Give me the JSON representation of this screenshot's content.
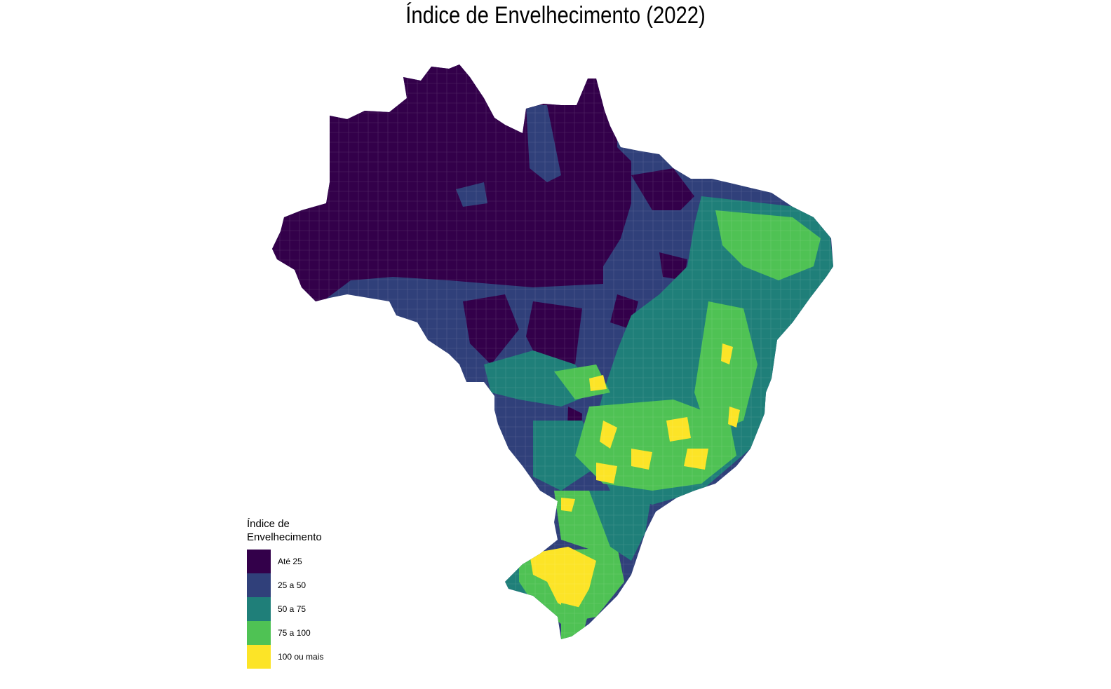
{
  "title": "Índice de Envelhecimento (2022)",
  "legend": {
    "title": "Índice de\nEnvelhecimento",
    "items": [
      {
        "label": "Até 25",
        "color": "#33004a"
      },
      {
        "label": "25 a 50",
        "color": "#30407a"
      },
      {
        "label": "50 a 75",
        "color": "#1f7f79"
      },
      {
        "label": "75 a 100",
        "color": "#4fc254"
      },
      {
        "label": "100 ou mais",
        "color": "#fce427"
      }
    ]
  },
  "map": {
    "type": "choropleth",
    "region": "Brasil",
    "unit": "municípios",
    "color_scale": [
      "#33004a",
      "#30407a",
      "#1f7f79",
      "#4fc254",
      "#fce427"
    ]
  }
}
